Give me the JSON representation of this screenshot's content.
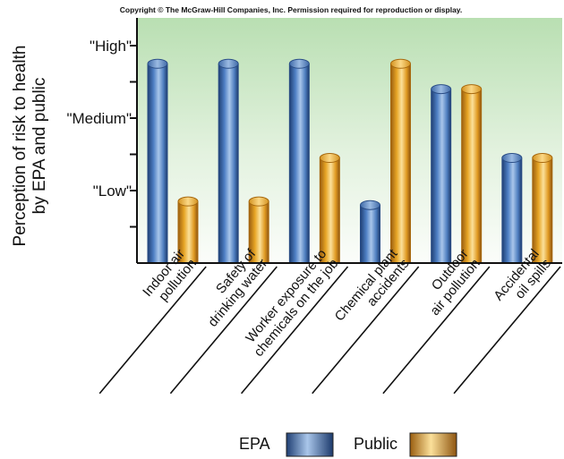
{
  "copyright": "Copyright © The McGraw-Hill Companies, Inc. Permission required for reproduction or display.",
  "chart_data": {
    "type": "bar",
    "ylabel_lines": [
      "Perception of risk to health",
      "by EPA and public"
    ],
    "yticks": [
      {
        "label": "\"High\"",
        "value": 3
      },
      {
        "label": "\"Medium\"",
        "value": 2
      },
      {
        "label": "\"Low\"",
        "value": 1
      }
    ],
    "ylim": [
      0,
      3.2
    ],
    "grid": false,
    "legend_placement": "bottom",
    "categories": [
      [
        "Indoor air",
        "pollution"
      ],
      [
        "Safety of",
        "drinking water"
      ],
      [
        "Worker exposure to",
        "chemicals on the job"
      ],
      [
        "Chemical plant",
        "accidents"
      ],
      [
        "Outdoor",
        "air pollution"
      ],
      [
        "Accidental",
        "oil spills"
      ]
    ],
    "series": [
      {
        "name": "EPA",
        "values": [
          2.75,
          2.75,
          2.75,
          0.8,
          2.4,
          1.45
        ],
        "color": "#3f6fb5"
      },
      {
        "name": "Public",
        "values": [
          0.85,
          0.85,
          1.45,
          2.75,
          2.4,
          1.45
        ],
        "color": "#e3a21f"
      }
    ]
  }
}
